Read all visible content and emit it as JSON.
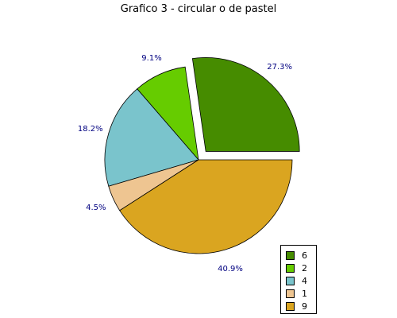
{
  "chart_data": {
    "type": "pie",
    "title": "Grafico 3 - circular o de pastel",
    "categories": [
      "6",
      "2",
      "4",
      "1",
      "9"
    ],
    "values": [
      6,
      2,
      4,
      1,
      9
    ],
    "percent_labels": [
      "27.3%",
      "9.1%",
      "18.2%",
      "4.5%",
      "40.9%"
    ],
    "colors": [
      "#468c00",
      "#66cc00",
      "#7ac4cc",
      "#eec591",
      "#daa520"
    ],
    "exploded": [
      true,
      false,
      false,
      false,
      false
    ],
    "label_color": "#000080",
    "legend_position": "bottom-right"
  }
}
